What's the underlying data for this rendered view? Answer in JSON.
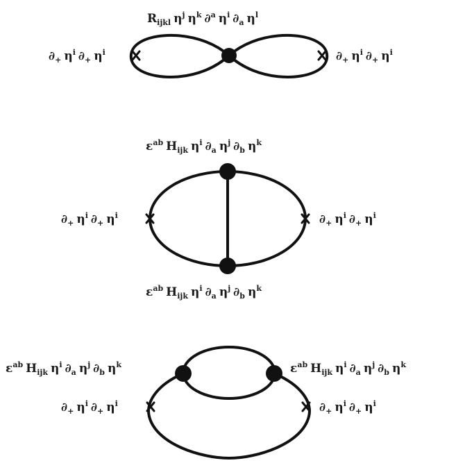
{
  "diagrams": [
    {
      "vertex_labels": [
        "R_{ijkl} η^j η^k ∂^a η^i ∂_a η^l"
      ],
      "left_label": "∂_+ η^i ∂_+ η^i",
      "right_label": "∂_+ η^i ∂_+ η^i"
    },
    {
      "vertex_labels": [
        "ε^{ab} H_{ijk} η^i ∂_a η^j ∂_b η^k",
        "ε^{ab} H_{ijk} η^i ∂_a η^j ∂_b η^k"
      ],
      "left_label": "∂_+ η^i ∂_+ η^i",
      "right_label": "∂_+ η^i ∂_+ η^i"
    },
    {
      "vertex_labels": [
        "ε^{ab} H_{ijk} η^i ∂_a η^j ∂_b η^k",
        "ε^{ab} H_{ijk} η^i ∂_a η^j ∂_b η^k"
      ],
      "left_label": "∂_+ η^i ∂_+ η^i",
      "right_label": "∂_+ η^i ∂_+ η^i"
    }
  ]
}
